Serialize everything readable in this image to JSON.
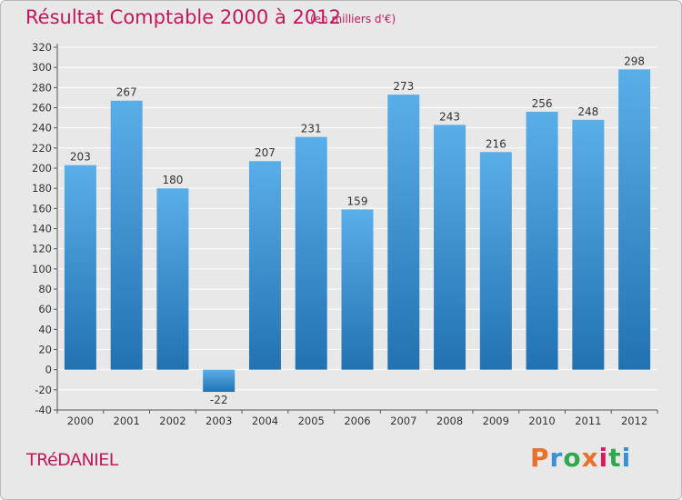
{
  "header": {
    "title": "Résultat Comptable 2000 à 2012",
    "subtitle": "(en milliers d'€)"
  },
  "footer": {
    "commune": "TRéDANIEL",
    "logo_text": "Proxiti"
  },
  "colors": {
    "title": "#c2185b",
    "bar_top": "#5aaee8",
    "bar_bottom": "#2272b2",
    "plot_background": "#e8e8e8",
    "grid": "#ffffff",
    "logo_letters": [
      "#e8702a",
      "#3b8fd4",
      "#2fa84f",
      "#e8702a",
      "#d81b60",
      "#2fa84f",
      "#3b8fd4"
    ]
  },
  "chart_data": {
    "type": "bar",
    "categories": [
      "2000",
      "2001",
      "2002",
      "2003",
      "2004",
      "2005",
      "2006",
      "2007",
      "2008",
      "2009",
      "2010",
      "2011",
      "2012"
    ],
    "values": [
      203,
      267,
      180,
      -22,
      207,
      231,
      159,
      273,
      243,
      216,
      256,
      248,
      298
    ],
    "value_labels": [
      "203",
      "267",
      "180",
      "-22",
      "207",
      "231",
      "159",
      "273",
      "243",
      "216",
      "256",
      "248",
      "298"
    ],
    "yticks": [
      "-40",
      "-20",
      "0",
      "20",
      "40",
      "60",
      "80",
      "100",
      "120",
      "140",
      "160",
      "180",
      "200",
      "220",
      "240",
      "260",
      "280",
      "300",
      "320"
    ],
    "ylim": [
      -40,
      320
    ],
    "ystep": 20,
    "grid": true,
    "legend": "none"
  }
}
